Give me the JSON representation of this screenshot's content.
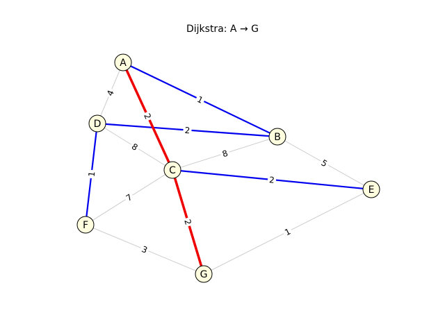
{
  "title": "Dijkstra: A → G",
  "colors": {
    "background": "#ffffff",
    "edge_default": "#cccccc",
    "edge_tree": "#0000ee",
    "edge_path": "#ee0000",
    "node_fill": "#ffffe0",
    "node_stroke": "#000000",
    "text": "#000000"
  },
  "nodes": [
    {
      "id": "A",
      "label": "A"
    },
    {
      "id": "B",
      "label": "B"
    },
    {
      "id": "C",
      "label": "C"
    },
    {
      "id": "D",
      "label": "D"
    },
    {
      "id": "E",
      "label": "E"
    },
    {
      "id": "F",
      "label": "F"
    },
    {
      "id": "G",
      "label": "G"
    }
  ],
  "edges": [
    {
      "from": "A",
      "to": "D",
      "weight": "4",
      "style": "default"
    },
    {
      "from": "D",
      "to": "C",
      "weight": "8",
      "style": "default"
    },
    {
      "from": "C",
      "to": "B",
      "weight": "8",
      "style": "default"
    },
    {
      "from": "B",
      "to": "E",
      "weight": "5",
      "style": "default"
    },
    {
      "from": "C",
      "to": "F",
      "weight": "7",
      "style": "default"
    },
    {
      "from": "F",
      "to": "G",
      "weight": "3",
      "style": "default"
    },
    {
      "from": "G",
      "to": "E",
      "weight": "1",
      "style": "default"
    },
    {
      "from": "A",
      "to": "B",
      "weight": "1",
      "style": "tree"
    },
    {
      "from": "D",
      "to": "B",
      "weight": "2",
      "style": "tree"
    },
    {
      "from": "D",
      "to": "F",
      "weight": "1",
      "style": "tree"
    },
    {
      "from": "C",
      "to": "E",
      "weight": "2",
      "style": "tree"
    },
    {
      "from": "A",
      "to": "C",
      "weight": "2",
      "style": "path"
    },
    {
      "from": "C",
      "to": "G",
      "weight": "2",
      "style": "path"
    }
  ]
}
